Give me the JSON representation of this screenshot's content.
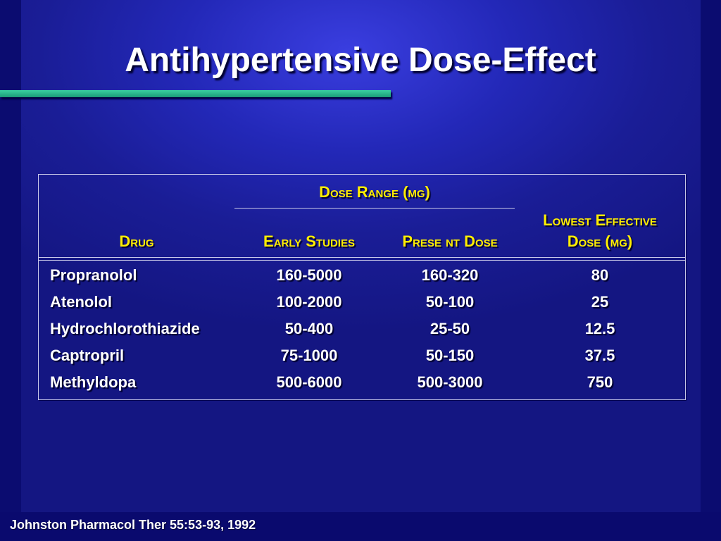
{
  "slide": {
    "title": "Antihypertensive Dose-Effect",
    "footer": "Johnston Pharmacol Ther 55:53-93, 1992"
  },
  "table": {
    "headers": {
      "dose_range": "Dose Range (mg)",
      "drug": "Drug",
      "early_studies": "Early Studies",
      "present_dose": "Prese nt Dose",
      "lowest_effective_line1": "Lowest Effective",
      "lowest_effective_line2": "Dose (mg)"
    },
    "rows": [
      {
        "drug": "Propranolol",
        "early": "160-5000",
        "present": "160-320",
        "lowest": "80"
      },
      {
        "drug": "Atenolol",
        "early": "100-2000",
        "present": "50-100",
        "lowest": "25"
      },
      {
        "drug": "Hydrochlorothiazide",
        "early": "50-400",
        "present": "25-50",
        "lowest": "12.5"
      },
      {
        "drug": "Captropril",
        "early": "75-1000",
        "present": "50-150",
        "lowest": "37.5"
      },
      {
        "drug": "Methyldopa",
        "early": "500-6000",
        "present": "500-3000",
        "lowest": "750"
      }
    ]
  },
  "colors": {
    "background": "#1a1d96",
    "header_text": "#ffee00",
    "body_text": "#ffffff",
    "accent_bar": "#2ab88c"
  }
}
